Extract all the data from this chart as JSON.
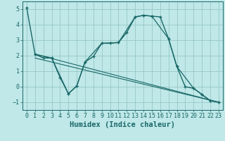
{
  "xlabel": "Humidex (Indice chaleur)",
  "xlim": [
    -0.5,
    23.5
  ],
  "ylim": [
    -1.5,
    5.5
  ],
  "yticks": [
    -1,
    0,
    1,
    2,
    3,
    4,
    5
  ],
  "xticks": [
    0,
    1,
    2,
    3,
    4,
    5,
    6,
    7,
    8,
    9,
    10,
    11,
    12,
    13,
    14,
    15,
    16,
    17,
    18,
    19,
    20,
    21,
    22,
    23
  ],
  "background_color": "#c0e8e8",
  "grid_color": "#90c0c0",
  "line_color": "#1a6868",
  "lines": [
    {
      "x": [
        0,
        1,
        2,
        3,
        4,
        5,
        6,
        7,
        8,
        9,
        10,
        11,
        12,
        13,
        14,
        15,
        16,
        17,
        18,
        19,
        20,
        21,
        22,
        23
      ],
      "y": [
        5.1,
        2.1,
        1.85,
        1.85,
        0.6,
        -0.45,
        0.05,
        1.6,
        1.95,
        2.8,
        2.8,
        2.85,
        3.5,
        4.5,
        4.6,
        4.55,
        4.5,
        3.1,
        1.3,
        0.0,
        -0.1,
        -0.5,
        -0.9,
        -1.0
      ],
      "lw": 1.0,
      "marker": "+",
      "ms": 3.5,
      "mew": 1.0
    },
    {
      "x": [
        1,
        3,
        5,
        6,
        7,
        9,
        11,
        13,
        14,
        15,
        17,
        18,
        20,
        21,
        22,
        23
      ],
      "y": [
        2.1,
        1.85,
        -0.45,
        0.05,
        1.6,
        2.8,
        2.85,
        4.5,
        4.6,
        4.55,
        3.1,
        1.3,
        -0.1,
        -0.5,
        -0.9,
        -1.0
      ],
      "lw": 0.9,
      "marker": "+",
      "ms": 3.0,
      "mew": 0.8
    },
    {
      "x": [
        1,
        23
      ],
      "y": [
        2.1,
        -1.0
      ],
      "lw": 0.8,
      "marker": null,
      "ms": 0,
      "mew": 0
    },
    {
      "x": [
        1,
        23
      ],
      "y": [
        1.85,
        -1.0
      ],
      "lw": 0.8,
      "marker": null,
      "ms": 0,
      "mew": 0
    }
  ],
  "tick_fontsize": 6,
  "xlabel_fontsize": 7.5
}
